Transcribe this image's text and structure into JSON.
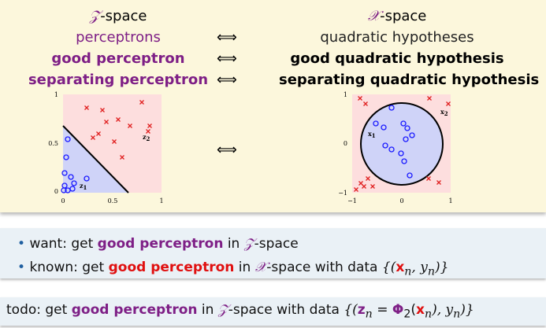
{
  "top_panel": {
    "left_column": {
      "header": [
        "𝒵",
        "-space"
      ],
      "rows": [
        "perceptrons",
        "good perceptron",
        "separating perceptron"
      ]
    },
    "right_column": {
      "header": [
        "𝒳",
        "-space"
      ],
      "rows": [
        "quadratic hypotheses",
        "good quadratic hypothesis",
        "separating quadratic hypothesis"
      ]
    },
    "equivalences": [
      "⟺",
      "⟺",
      "⟺",
      "⟺"
    ],
    "left_plot": {
      "y_ticks": [
        "1",
        "0.5",
        "0"
      ],
      "x_ticks": [
        "0",
        "0.5",
        "1"
      ],
      "point_labels": [
        {
          "symbol": "z",
          "sub": "1"
        },
        {
          "symbol": "z",
          "sub": "2"
        }
      ]
    },
    "right_plot": {
      "y_ticks": [
        "1",
        "0",
        "−1"
      ],
      "x_ticks": [
        "−1",
        "0",
        "1"
      ],
      "point_labels": [
        {
          "symbol": "x",
          "sub": "1"
        },
        {
          "symbol": "x",
          "sub": "2"
        }
      ]
    }
  },
  "bullets": [
    [
      "want: get ",
      "good perceptron",
      " in ",
      "𝒵",
      "-space"
    ],
    [
      "known: get ",
      "good perceptron",
      " in ",
      "𝒳",
      "-space with data ",
      "{(",
      "x",
      "n",
      ", ",
      "y",
      "n",
      ")}"
    ]
  ],
  "todo": [
    "todo: get ",
    "good perceptron",
    " in ",
    "𝒵",
    "-space with data ",
    "{(",
    "z",
    "n",
    " = ",
    "Φ",
    "2",
    "(",
    "x",
    "n",
    "), ",
    "y",
    "n",
    ")}"
  ]
}
